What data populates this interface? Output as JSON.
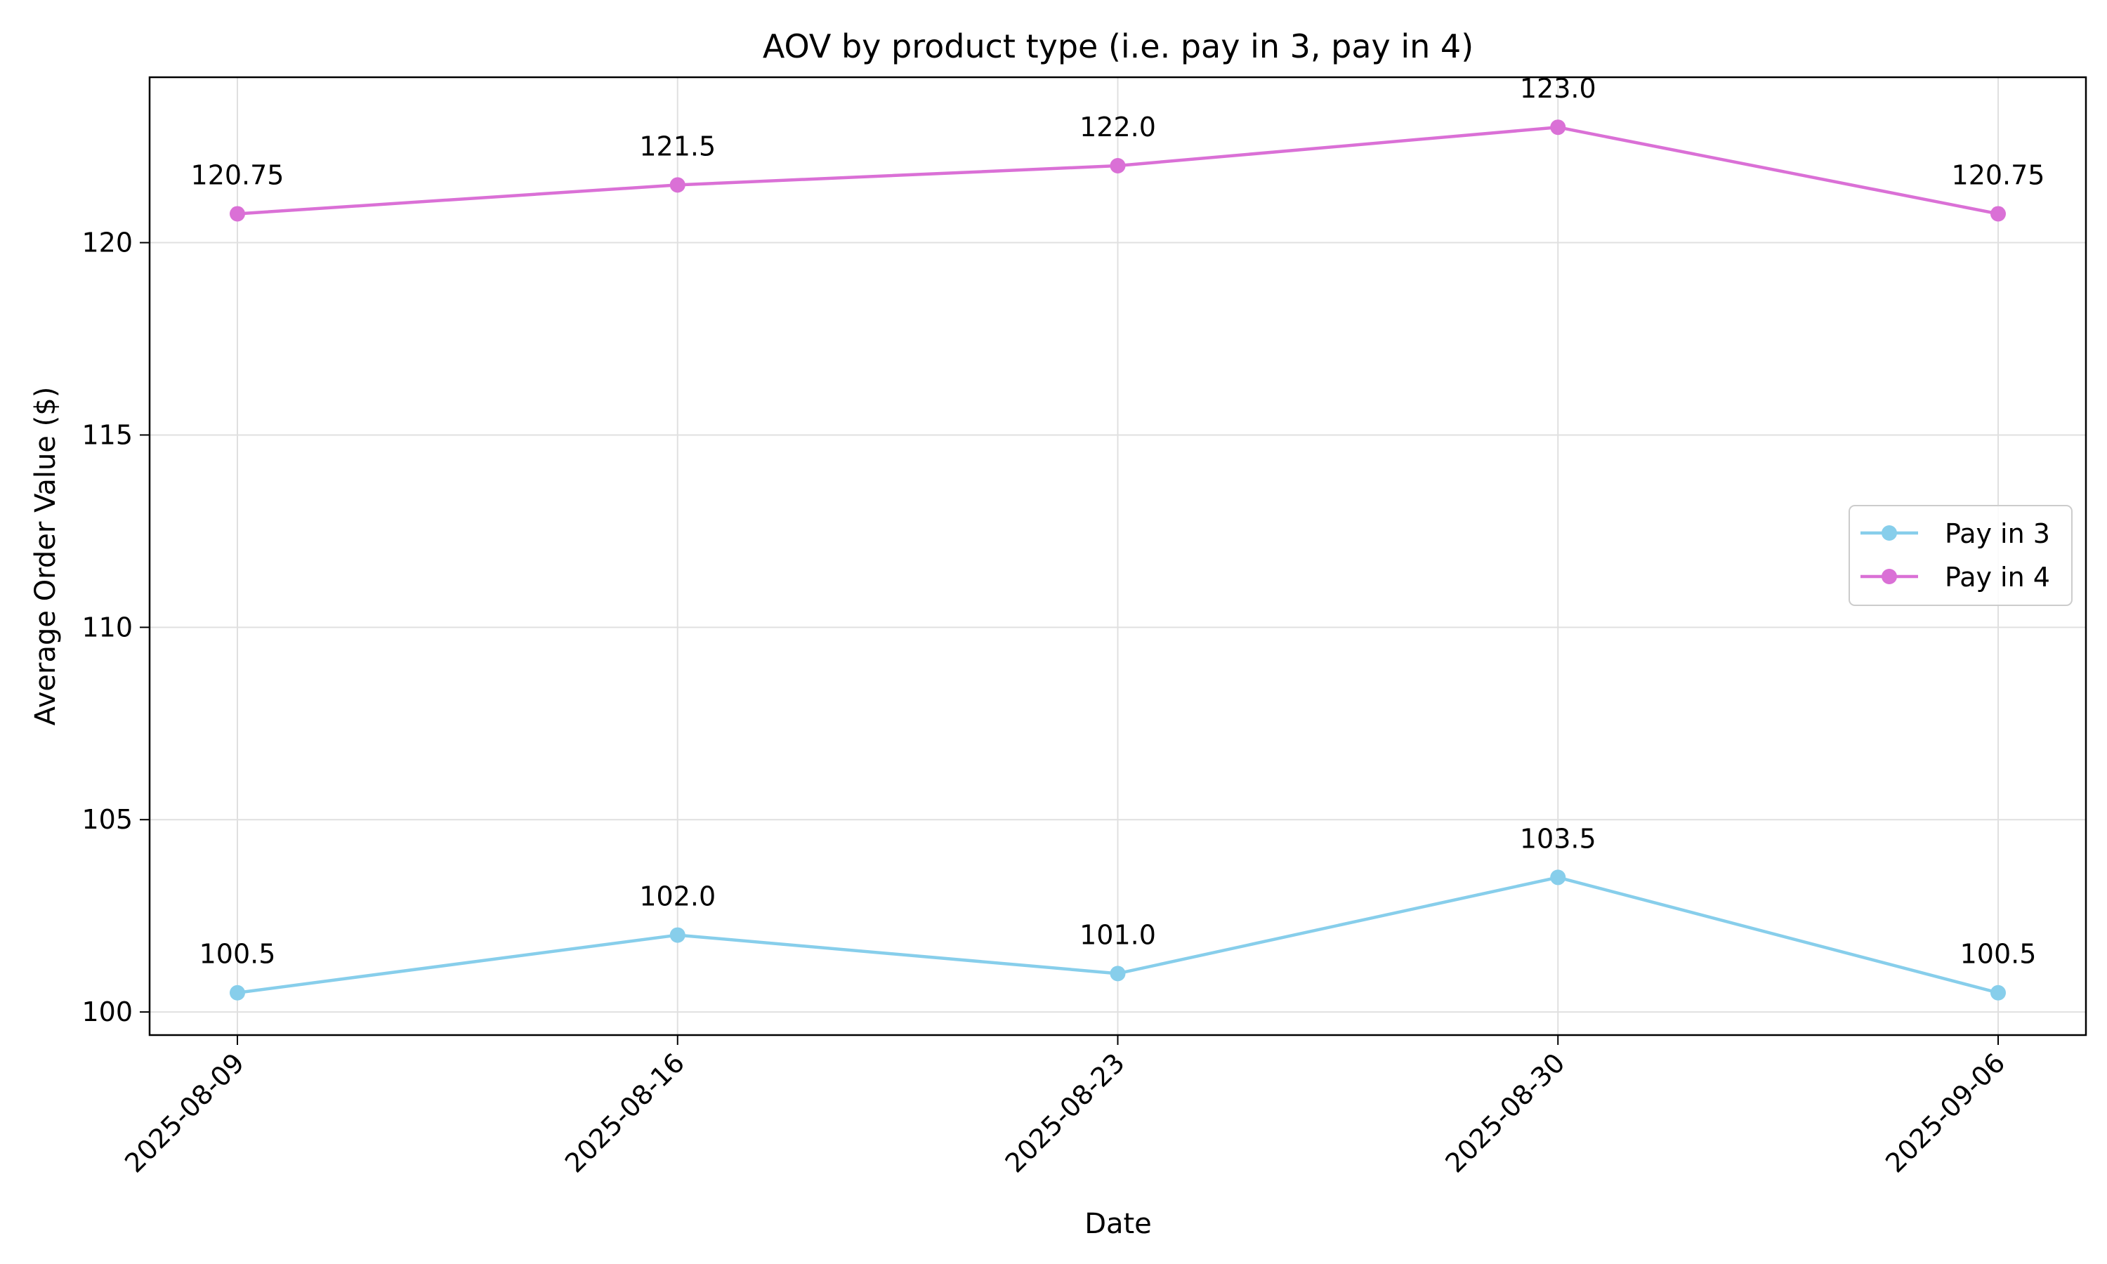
{
  "chart_data": {
    "type": "line",
    "title": "AOV by product type (i.e. pay in 3, pay in 4)",
    "xlabel": "Date",
    "ylabel": "Average Order Value ($)",
    "categories": [
      "2025-08-09",
      "2025-08-16",
      "2025-08-23",
      "2025-08-30",
      "2025-09-06"
    ],
    "yticks": [
      100,
      105,
      110,
      115,
      120
    ],
    "ylim": [
      99.4,
      124.3
    ],
    "grid": true,
    "legend_position": "center-right",
    "series": [
      {
        "name": "Pay in 3",
        "color": "#87CEEB",
        "values": [
          100.5,
          102.0,
          101.0,
          103.5,
          100.5
        ],
        "labels": [
          "100.5",
          "102.0",
          "101.0",
          "103.5",
          "100.5"
        ]
      },
      {
        "name": "Pay in 4",
        "color": "#DA70D6",
        "values": [
          120.75,
          121.5,
          122.0,
          123.0,
          120.75
        ],
        "labels": [
          "120.75",
          "121.5",
          "122.0",
          "123.0",
          "120.75"
        ]
      }
    ]
  }
}
